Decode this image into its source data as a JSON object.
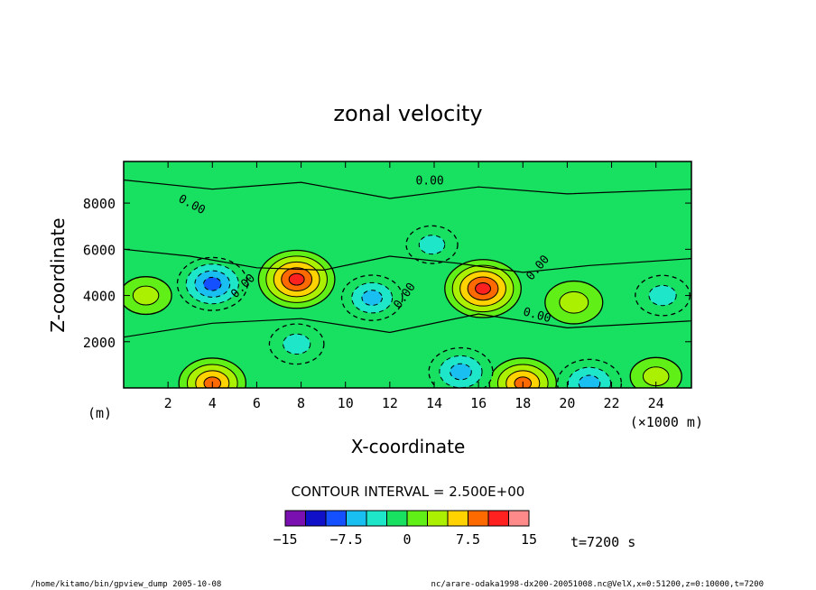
{
  "chart_data": {
    "type": "heatmap",
    "title": "zonal velocity",
    "xlabel": "X-coordinate",
    "ylabel": "Z-coordinate",
    "y_unit": "(m)",
    "x_unit": "(×1000 m)",
    "x_ticks": [
      "2",
      "4",
      "6",
      "8",
      "10",
      "12",
      "14",
      "16",
      "18",
      "20",
      "22",
      "24"
    ],
    "y_ticks": [
      "2000",
      "4000",
      "6000",
      "8000"
    ],
    "xlim": [
      0,
      25.6
    ],
    "ylim": [
      0,
      9800
    ],
    "contour_interval_text": "CONTOUR INTERVAL = 2.500E+00",
    "zero_label": "0.00",
    "colorbar": {
      "levels": [
        -15,
        -12.5,
        -10,
        -7.5,
        -5,
        -2.5,
        0,
        2.5,
        5,
        7.5,
        10,
        12.5,
        15
      ],
      "tick_labels": [
        "−15",
        "−7.5",
        "0",
        "7.5",
        "15"
      ],
      "colors": [
        "#7a10b0",
        "#1010c8",
        "#1450ff",
        "#19bff0",
        "#1ee6c8",
        "#18e060",
        "#60f018",
        "#aaf000",
        "#ffd200",
        "#ff6a00",
        "#ff2020",
        "#ff8a8a"
      ]
    },
    "time_label": "t=7200 s",
    "features": [
      {
        "x": 7.8,
        "z": 4700,
        "value": 11,
        "kind": "max"
      },
      {
        "x": 16.2,
        "z": 4300,
        "value": 11,
        "kind": "max"
      },
      {
        "x": 4.0,
        "z": 200,
        "value": 8,
        "kind": "max"
      },
      {
        "x": 18.0,
        "z": 200,
        "value": 8,
        "kind": "max"
      },
      {
        "x": 4.0,
        "z": 4500,
        "value": -9,
        "kind": "min"
      },
      {
        "x": 11.2,
        "z": 3900,
        "value": -6,
        "kind": "min"
      },
      {
        "x": 15.2,
        "z": 700,
        "value": -7,
        "kind": "min"
      },
      {
        "x": 21.0,
        "z": 200,
        "value": -7,
        "kind": "min"
      },
      {
        "x": 7.8,
        "z": 1900,
        "value": -4,
        "kind": "min"
      },
      {
        "x": 20.3,
        "z": 3700,
        "value": 5,
        "kind": "max"
      },
      {
        "x": 1.0,
        "z": 4000,
        "value": 3,
        "kind": "max"
      },
      {
        "x": 24.3,
        "z": 4000,
        "value": -4,
        "kind": "min"
      },
      {
        "x": 24.0,
        "z": 500,
        "value": 3,
        "kind": "max"
      },
      {
        "x": 13.9,
        "z": 6200,
        "value": -3,
        "kind": "min"
      }
    ]
  },
  "footer": {
    "left": "/home/kitamo/bin/gpview_dump  2005-10-08",
    "right": "nc/arare-odaka1998-dx200-20051008.nc@VelX,x=0:51200,z=0:10000,t=7200"
  }
}
